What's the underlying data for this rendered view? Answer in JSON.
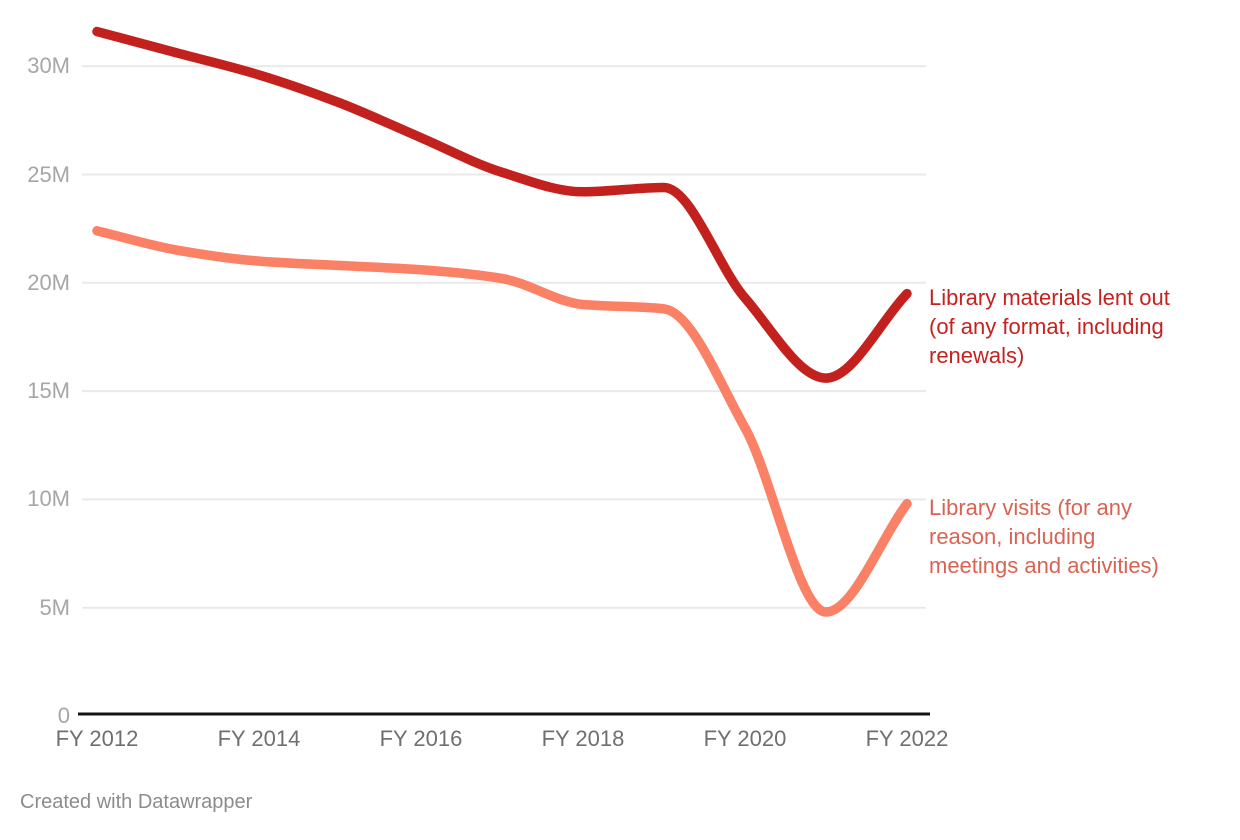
{
  "chart": {
    "footer_credit": "Created with Datawrapper"
  },
  "chart_data": {
    "type": "line",
    "title": "",
    "xlabel": "",
    "ylabel": "",
    "unit": "millions",
    "grid": true,
    "legend_position": "right-of-line-end",
    "x": [
      2012,
      2013,
      2014,
      2015,
      2016,
      2017,
      2018,
      2019,
      2020,
      2021,
      2022
    ],
    "x_ticks": [
      {
        "year": 2012,
        "label": "FY 2012"
      },
      {
        "year": 2014,
        "label": "FY 2014"
      },
      {
        "year": 2016,
        "label": "FY 2016"
      },
      {
        "year": 2018,
        "label": "FY 2018"
      },
      {
        "year": 2020,
        "label": "FY 2020"
      },
      {
        "year": 2022,
        "label": "FY 2022"
      }
    ],
    "y_ticks": [
      {
        "value": 0,
        "label": "0"
      },
      {
        "value": 5,
        "label": "5M"
      },
      {
        "value": 10,
        "label": "10M"
      },
      {
        "value": 15,
        "label": "15M"
      },
      {
        "value": 20,
        "label": "20M"
      },
      {
        "value": 25,
        "label": "25M"
      },
      {
        "value": 30,
        "label": "30M"
      }
    ],
    "ylim": [
      0,
      32.5
    ],
    "colors": {
      "grid": "#e9e9e9",
      "axis": "#151515",
      "y_tick_text": "#a6a6a6",
      "x_tick_text": "#6f6f6f",
      "footer_text": "#8c8c8c"
    },
    "series": [
      {
        "name": "Library materials lent out (of any format, including renewals)",
        "label_lines": [
          "Library materials lent out",
          "(of any format, including",
          "renewals)"
        ],
        "color": "#c2211e",
        "label_color": "#c5221f",
        "values": [
          31.6,
          30.6,
          29.6,
          28.3,
          26.7,
          25.1,
          24.2,
          24.4,
          19.3,
          15.6,
          19.5
        ]
      },
      {
        "name": "Library visits (for any reason, including meetings and activities)",
        "label_lines": [
          "Library visits (for any",
          "reason, including",
          "meetings and activities)"
        ],
        "color": "#fa8066",
        "label_color": "#d96352",
        "values": [
          22.4,
          21.5,
          21.0,
          20.8,
          20.6,
          20.2,
          19.0,
          18.8,
          13.3,
          4.8,
          9.8
        ]
      }
    ]
  }
}
